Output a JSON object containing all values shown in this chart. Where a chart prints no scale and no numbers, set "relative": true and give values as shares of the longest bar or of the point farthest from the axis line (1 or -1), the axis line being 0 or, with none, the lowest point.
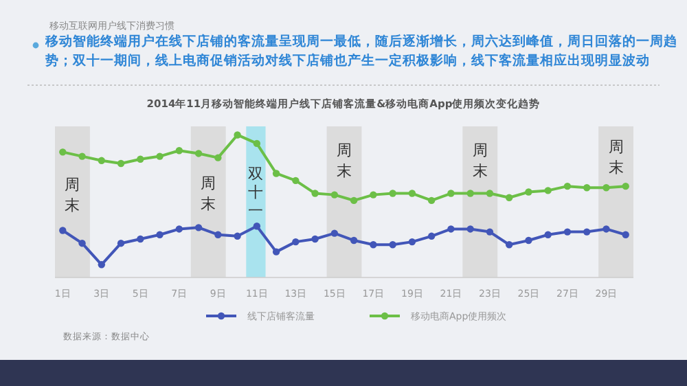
{
  "chart_data": {
    "type": "line",
    "title": "2014年11月移动智能终端用户线下店铺客流量&移动电商App使用频次变化趋势",
    "subtitle": "移动互联网用户线下消费习惯",
    "annotations": [
      "移动智能终端用户在线下店铺的客流量呈现周一最低，随后逐渐增长，周六达到峰值，周日回落的一周趋势；双十一期间，线上电商促销活动对线下店铺也产生一定积极影响，线下客流量相应出现明显波动",
      "数据来源：数据中心"
    ],
    "x": [
      1,
      2,
      3,
      4,
      5,
      6,
      7,
      8,
      9,
      10,
      11,
      12,
      13,
      14,
      15,
      16,
      17,
      18,
      19,
      20,
      21,
      22,
      23,
      24,
      25,
      26,
      27,
      28,
      29,
      30
    ],
    "xlim": [
      0.6,
      30.4
    ],
    "xticks": [
      {
        "value": 1,
        "label": "1日"
      },
      {
        "value": 3,
        "label": "3日"
      },
      {
        "value": 5,
        "label": "5日"
      },
      {
        "value": 7,
        "label": "7日"
      },
      {
        "value": 9,
        "label": "9日"
      },
      {
        "value": 11,
        "label": "11日"
      },
      {
        "value": 13,
        "label": "13日"
      },
      {
        "value": 15,
        "label": "15日"
      },
      {
        "value": 17,
        "label": "17日"
      },
      {
        "value": 19,
        "label": "19日"
      },
      {
        "value": 21,
        "label": "21日"
      },
      {
        "value": 23,
        "label": "23日"
      },
      {
        "value": 25,
        "label": "25日"
      },
      {
        "value": 27,
        "label": "27日"
      },
      {
        "value": 29,
        "label": "29日"
      }
    ],
    "relative": true,
    "series": [
      {
        "name": "线下店铺客流量",
        "color": "#4256b8",
        "values": [
          0.33,
          0.24,
          0.09,
          0.24,
          0.27,
          0.3,
          0.34,
          0.35,
          0.3,
          0.29,
          0.36,
          0.18,
          0.25,
          0.27,
          0.31,
          0.26,
          0.23,
          0.23,
          0.25,
          0.29,
          0.34,
          0.34,
          0.32,
          0.23,
          0.26,
          0.3,
          0.32,
          0.32,
          0.34,
          0.3
        ]
      },
      {
        "name": "移动电商App使用频次",
        "color": "#6cbf47",
        "values": [
          0.88,
          0.85,
          0.82,
          0.8,
          0.83,
          0.85,
          0.89,
          0.87,
          0.84,
          1.0,
          0.94,
          0.73,
          0.68,
          0.59,
          0.58,
          0.54,
          0.58,
          0.59,
          0.59,
          0.54,
          0.59,
          0.59,
          0.59,
          0.56,
          0.6,
          0.61,
          0.64,
          0.63,
          0.63,
          0.64
        ]
      }
    ],
    "bands": [
      {
        "axis": "x",
        "from": 0.6,
        "to": 2.4,
        "label": "周末",
        "color": "#dcdcdc"
      },
      {
        "axis": "x",
        "from": 7.6,
        "to": 9.4,
        "label": "周末",
        "color": "#dcdcdc"
      },
      {
        "axis": "x",
        "from": 10.45,
        "to": 11.45,
        "label": "双十一",
        "color": "#a9e3ee"
      },
      {
        "axis": "x",
        "from": 14.6,
        "to": 16.4,
        "label": "周末",
        "color": "#dcdcdc"
      },
      {
        "axis": "x",
        "from": 21.6,
        "to": 23.4,
        "label": "周末",
        "color": "#dcdcdc"
      },
      {
        "axis": "x",
        "from": 28.6,
        "to": 30.4,
        "label": "周末",
        "color": "#dcdcdc"
      }
    ],
    "marker": "circle",
    "line_style": "solid",
    "legend": "bottom",
    "tick_labels": "x",
    "grid": false
  }
}
